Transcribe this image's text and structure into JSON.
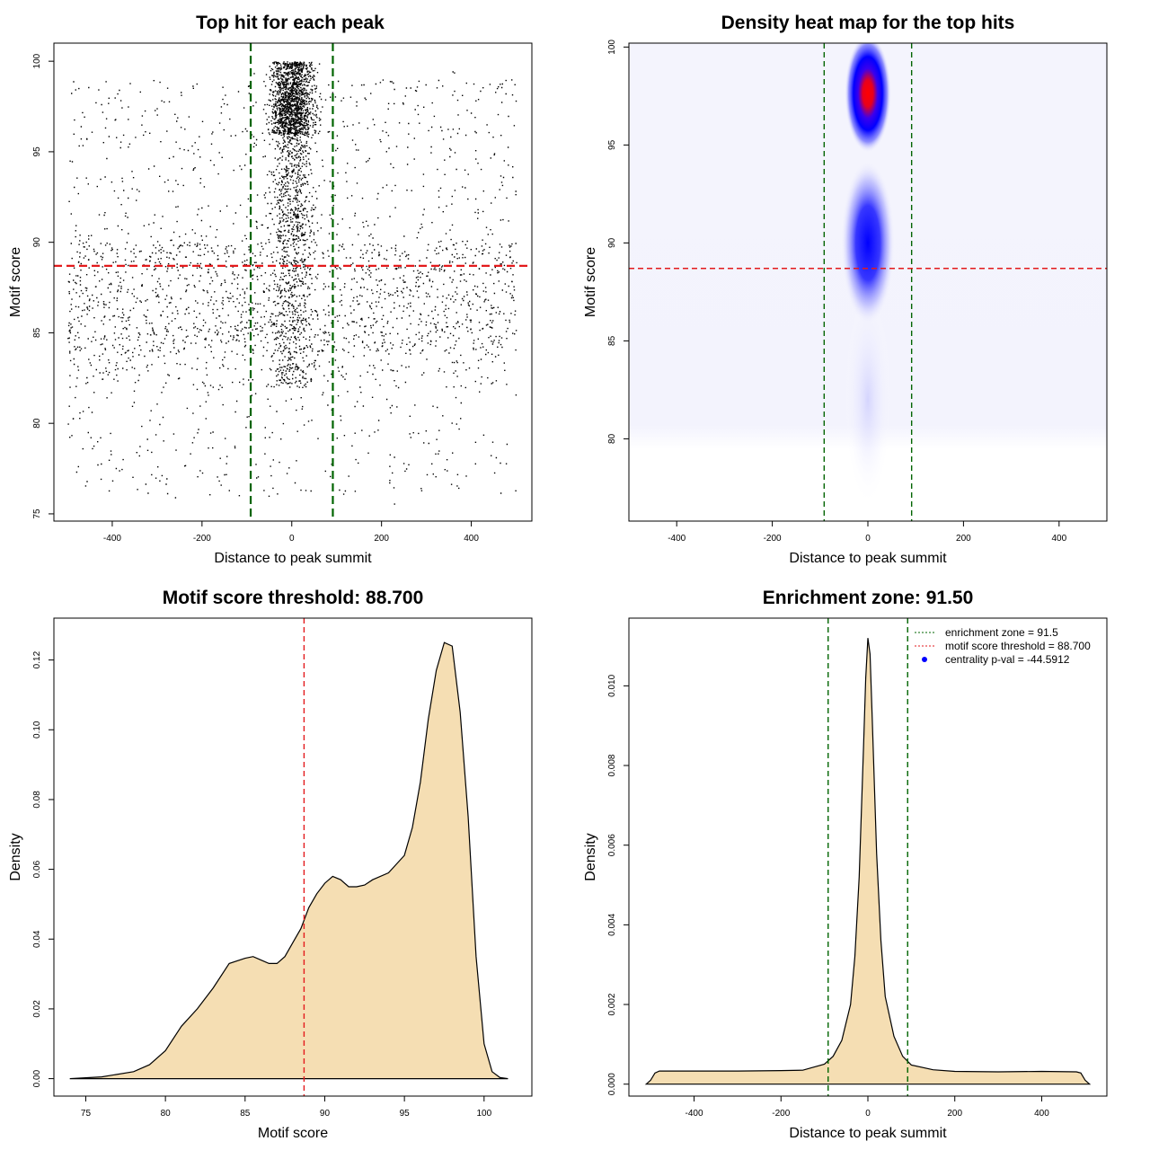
{
  "chart_data": [
    {
      "id": "scatter",
      "type": "scatter",
      "title": "Top hit for each peak",
      "xlabel": "Distance to peak summit",
      "ylabel": "Motif score",
      "xlim": [
        -530,
        535
      ],
      "ylim": [
        74.6,
        101
      ],
      "xticks": [
        -400,
        -200,
        0,
        200,
        400
      ],
      "yticks": [
        75,
        80,
        85,
        90,
        95,
        100
      ],
      "vlines": [
        {
          "x": -91.5,
          "color": "#006400",
          "style": "dashed"
        },
        {
          "x": 91.5,
          "color": "#006400",
          "style": "dashed"
        }
      ],
      "hlines": [
        {
          "y": 88.7,
          "color": "#e31a1c",
          "style": "dashed"
        }
      ],
      "x_range_points": [
        -500,
        500
      ],
      "y_range_points": [
        75.5,
        100
      ],
      "central_band": [
        -45,
        45
      ],
      "central_score_mode": 98
    },
    {
      "id": "heatmap",
      "type": "heatmap",
      "title": "Density heat map for the top hits",
      "xlabel": "Distance to peak summit",
      "ylabel": "Motif score",
      "xlim": [
        -500,
        500
      ],
      "ylim": [
        75.8,
        100.2
      ],
      "xticks": [
        -400,
        -200,
        0,
        200,
        400
      ],
      "yticks": [
        80,
        85,
        90,
        95,
        100
      ],
      "vlines": [
        {
          "x": -91.5,
          "color": "#006400",
          "style": "dashed"
        },
        {
          "x": 91.5,
          "color": "#006400",
          "style": "dashed"
        }
      ],
      "hlines": [
        {
          "y": 88.7,
          "color": "#e31a1c",
          "style": "dashed"
        }
      ],
      "hotspot": {
        "x": 0,
        "y": 98
      },
      "colors": {
        "low": "#ffffff",
        "mid": "#0000ff",
        "high": "#ff0000"
      }
    },
    {
      "id": "score-density",
      "type": "area",
      "title": "Motif score threshold: 88.700",
      "xlabel": "Motif score",
      "ylabel": "Density",
      "xlim": [
        73,
        103
      ],
      "ylim": [
        -0.005,
        0.132
      ],
      "xticks": [
        75,
        80,
        85,
        90,
        95,
        100
      ],
      "yticks": [
        0.0,
        0.02,
        0.04,
        0.06,
        0.08,
        0.1,
        0.12
      ],
      "ytick_labels": [
        "0.00",
        "0.02",
        "0.04",
        "0.06",
        "0.08",
        "0.10",
        "0.12"
      ],
      "vlines": [
        {
          "x": 88.7,
          "color": "#e31a1c",
          "style": "dashed"
        }
      ],
      "fill": "#f5deb3",
      "x": [
        74,
        76,
        78,
        79,
        80,
        81,
        82,
        83,
        84,
        85,
        85.5,
        86,
        86.5,
        87,
        87.5,
        88,
        88.5,
        89,
        89.5,
        90,
        90.5,
        91,
        91.5,
        92,
        92.5,
        93,
        94,
        95,
        95.5,
        96,
        96.5,
        97,
        97.5,
        98,
        98.5,
        99,
        99.5,
        100,
        100.5,
        101,
        101.5
      ],
      "y": [
        0.0,
        0.0005,
        0.002,
        0.004,
        0.008,
        0.015,
        0.02,
        0.026,
        0.033,
        0.0345,
        0.035,
        0.034,
        0.033,
        0.033,
        0.035,
        0.039,
        0.043,
        0.049,
        0.053,
        0.056,
        0.058,
        0.057,
        0.055,
        0.055,
        0.0555,
        0.057,
        0.059,
        0.064,
        0.072,
        0.085,
        0.103,
        0.117,
        0.125,
        0.124,
        0.105,
        0.075,
        0.035,
        0.01,
        0.002,
        0.0003,
        0.0
      ]
    },
    {
      "id": "distance-density",
      "type": "area",
      "title": "Enrichment zone: 91.50",
      "xlabel": "Distance to peak summit",
      "ylabel": "Density",
      "xlim": [
        -550,
        550
      ],
      "ylim": [
        -0.0003,
        0.0117
      ],
      "xticks": [
        -400,
        -200,
        0,
        200,
        400
      ],
      "yticks": [
        0.0,
        0.002,
        0.004,
        0.006,
        0.008,
        0.01
      ],
      "ytick_labels": [
        "0.000",
        "0.002",
        "0.004",
        "0.006",
        "0.008",
        "0.010"
      ],
      "vlines": [
        {
          "x": -91.5,
          "color": "#006400",
          "style": "dashed"
        },
        {
          "x": 91.5,
          "color": "#006400",
          "style": "dashed"
        }
      ],
      "fill": "#f5deb3",
      "x": [
        -510,
        -500,
        -490,
        -480,
        -400,
        -300,
        -200,
        -150,
        -100,
        -80,
        -60,
        -40,
        -30,
        -20,
        -10,
        -5,
        0,
        5,
        10,
        20,
        30,
        40,
        60,
        80,
        100,
        150,
        200,
        300,
        400,
        480,
        490,
        500,
        510
      ],
      "y": [
        0,
        0.0001,
        0.00028,
        0.00033,
        0.00033,
        0.00033,
        0.00034,
        0.00035,
        0.0005,
        0.0007,
        0.0011,
        0.002,
        0.0032,
        0.0052,
        0.0085,
        0.0102,
        0.0112,
        0.0108,
        0.0092,
        0.0058,
        0.0036,
        0.0022,
        0.0012,
        0.0007,
        0.00048,
        0.00036,
        0.00032,
        0.00031,
        0.00032,
        0.00031,
        0.00028,
        0.0001,
        0
      ],
      "legend": [
        {
          "label": "enrichment zone = 91.5",
          "color": "#006400",
          "kind": "line"
        },
        {
          "label": "motif score threshold = 88.700",
          "color": "#e31a1c",
          "kind": "line"
        },
        {
          "label": "centrality p-val = -44.5912",
          "color": "#0000ff",
          "kind": "point"
        }
      ],
      "legend_position": "top-right"
    }
  ]
}
